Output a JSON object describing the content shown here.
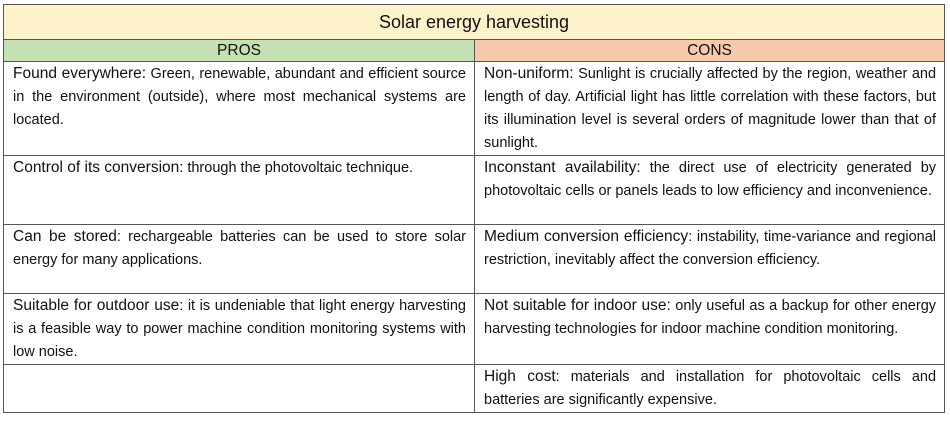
{
  "title": "Solar energy harvesting",
  "pros_header": "PROS",
  "cons_header": "CONS",
  "rows": [
    {
      "pro": {
        "term": "Found everywhere:",
        "desc": " Green, renewable, abundant and efficient source in the environment (outside), where most mechanical systems are located."
      },
      "con": {
        "term": "Non-uniform:",
        "desc": " Sunlight is crucially affected by the region, weather and length of day. Artificial light has little correlation with these factors, but its illumination level is several orders of magnitude lower than that of sunlight."
      }
    },
    {
      "pro": {
        "term": "Control of its conversion",
        "desc": ": through the photovoltaic technique."
      },
      "con": {
        "term": "Inconstant availability:",
        "desc": " the direct use of electricity generated by photovoltaic cells or panels leads to low efficiency and inconvenience."
      }
    },
    {
      "pro": {
        "term": "Can be stored",
        "desc": ": rechargeable batteries can be used to store solar energy for many applications."
      },
      "con": {
        "term": "Medium conversion efficiency",
        "desc": ": instability, time-variance and regional restriction, inevitably affect the conversion efficiency."
      }
    },
    {
      "pro": {
        "term": "Suitable for outdoor use",
        "desc": ": it is undeniable that light energy harvesting is a feasible way to power machine condition monitoring systems with low noise."
      },
      "con": {
        "term": "Not suitable for indoor use:",
        "desc": " only useful as a backup for other energy harvesting technologies for indoor machine condition monitoring."
      }
    },
    {
      "pro": {
        "term": "",
        "desc": ""
      },
      "con": {
        "term": "High cost",
        "desc": ": materials and installation for photovoltaic cells and batteries are significantly expensive."
      }
    }
  ],
  "colors": {
    "title_bg": "#fef2cb",
    "pros_bg": "#c5e0b3",
    "cons_bg": "#f7caac"
  }
}
